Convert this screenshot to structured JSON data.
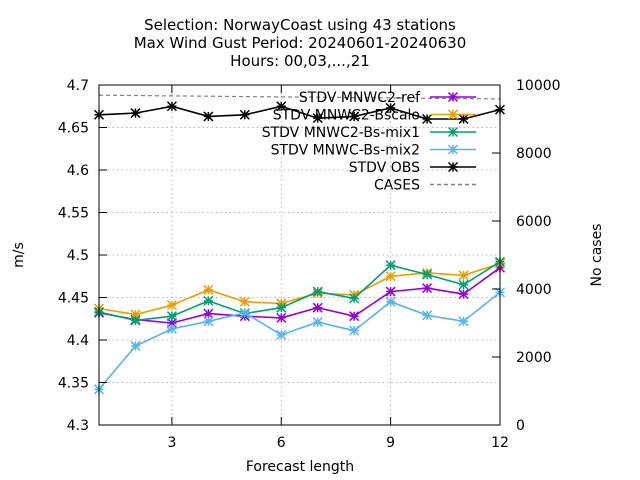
{
  "chart_data": {
    "type": "line",
    "title_lines": [
      "Selection: NorwayCoast using    43 stations",
      "Max Wind Gust   Period: 20240601-20240630",
      "Hours: 00,03,...,21"
    ],
    "xlabel": "Forecast length",
    "ylabel": "m/s",
    "y2label": "No cases",
    "xlim": [
      1,
      12
    ],
    "ylim": [
      4.3,
      4.7
    ],
    "y2lim": [
      0,
      10000
    ],
    "xticks": [
      3,
      6,
      9,
      12
    ],
    "yticks": [
      4.3,
      4.35,
      4.4,
      4.45,
      4.5,
      4.55,
      4.6,
      4.65,
      4.7
    ],
    "y2ticks": [
      0,
      2000,
      4000,
      6000,
      8000,
      10000
    ],
    "grid": "dashed",
    "legend_position": "top-right",
    "x": [
      1,
      2,
      3,
      4,
      5,
      6,
      7,
      8,
      9,
      10,
      11,
      12
    ],
    "series": [
      {
        "name": "STDV MNWC2-ref",
        "color": "#9400d3",
        "marker": "asterisk",
        "values": [
          4.432,
          4.424,
          4.42,
          4.431,
          4.428,
          4.426,
          4.438,
          4.428,
          4.457,
          4.461,
          4.454,
          4.485
        ]
      },
      {
        "name": "STDV MNWC2-Bscalo",
        "color": "#e69f00",
        "marker": "asterisk",
        "values": [
          4.437,
          4.43,
          4.441,
          4.459,
          4.445,
          4.443,
          4.455,
          4.453,
          4.475,
          4.479,
          4.476,
          4.49
        ]
      },
      {
        "name": "STDV MNWC2-Bs-mix1",
        "color": "#009e73",
        "marker": "asterisk",
        "values": [
          4.433,
          4.423,
          4.428,
          4.446,
          4.431,
          4.438,
          4.457,
          4.449,
          4.488,
          4.477,
          4.465,
          4.492
        ]
      },
      {
        "name": "STDV MNWC-Bs-mix2",
        "color": "#56b4e9",
        "marker": "asterisk",
        "values": [
          4.342,
          4.393,
          4.413,
          4.422,
          4.432,
          4.406,
          4.421,
          4.411,
          4.445,
          4.429,
          4.422,
          4.456
        ]
      },
      {
        "name": "STDV OBS",
        "color": "#000000",
        "marker": "asterisk",
        "values": [
          4.665,
          4.667,
          4.675,
          4.663,
          4.665,
          4.675,
          4.661,
          4.663,
          4.673,
          4.66,
          4.66,
          4.671
        ]
      },
      {
        "name": "CASES",
        "color": "#808080",
        "dashed": true,
        "axis": "y2",
        "values": [
          9700,
          9690,
          9680,
          9670,
          9660,
          9650,
          9640,
          9630,
          9620,
          9610,
          9600,
          9590
        ]
      }
    ]
  }
}
